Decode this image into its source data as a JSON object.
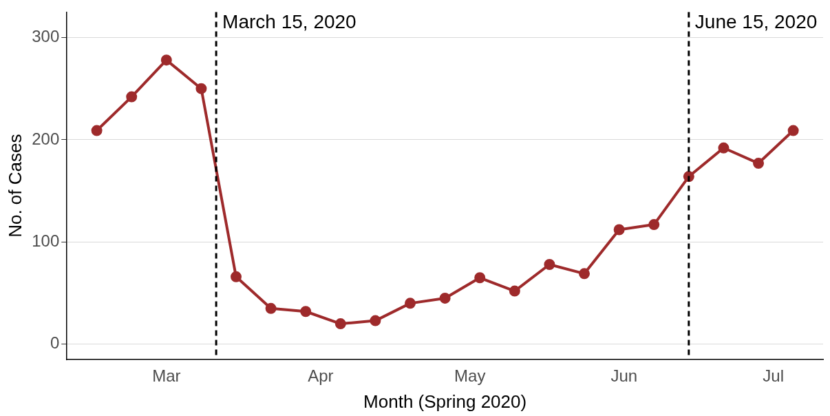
{
  "chart_data": {
    "type": "line",
    "xlabel": "Month (Spring 2020)",
    "ylabel": "No. of Cases",
    "x": [
      "2020-02-16",
      "2020-02-23",
      "2020-03-01",
      "2020-03-08",
      "2020-03-15",
      "2020-03-22",
      "2020-03-29",
      "2020-04-05",
      "2020-04-12",
      "2020-04-19",
      "2020-04-26",
      "2020-05-03",
      "2020-05-10",
      "2020-05-17",
      "2020-05-24",
      "2020-05-31",
      "2020-06-07",
      "2020-06-14",
      "2020-06-21",
      "2020-06-28",
      "2020-07-05"
    ],
    "series": [
      {
        "color": "#9e2a2b",
        "values": [
          209,
          242,
          278,
          250,
          66,
          35,
          32,
          20,
          23,
          40,
          45,
          65,
          52,
          78,
          69,
          112,
          117,
          164,
          192,
          177,
          209
        ]
      }
    ],
    "xlim": [
      "2020-02-10",
      "2020-07-11"
    ],
    "xticks": [
      {
        "value": "2020-03-01",
        "label": "Mar"
      },
      {
        "value": "2020-04-01",
        "label": "Apr"
      },
      {
        "value": "2020-05-01",
        "label": "May"
      },
      {
        "value": "2020-06-01",
        "label": "Jun"
      },
      {
        "value": "2020-07-01",
        "label": "Jul"
      }
    ],
    "ylim": [
      -15,
      325
    ],
    "yticks": [
      0,
      100,
      200,
      300
    ],
    "grid": "y",
    "legend": false,
    "marker": "circle",
    "line_style": "solid",
    "ref_lines": [
      {
        "axis": "x",
        "value": "2020-03-11",
        "label": "March 15, 2020",
        "color": "#000000",
        "line_style": "dashed"
      },
      {
        "axis": "x",
        "value": "2020-06-14",
        "label": "June 15, 2020",
        "color": "#000000",
        "line_style": "dashed"
      }
    ]
  }
}
